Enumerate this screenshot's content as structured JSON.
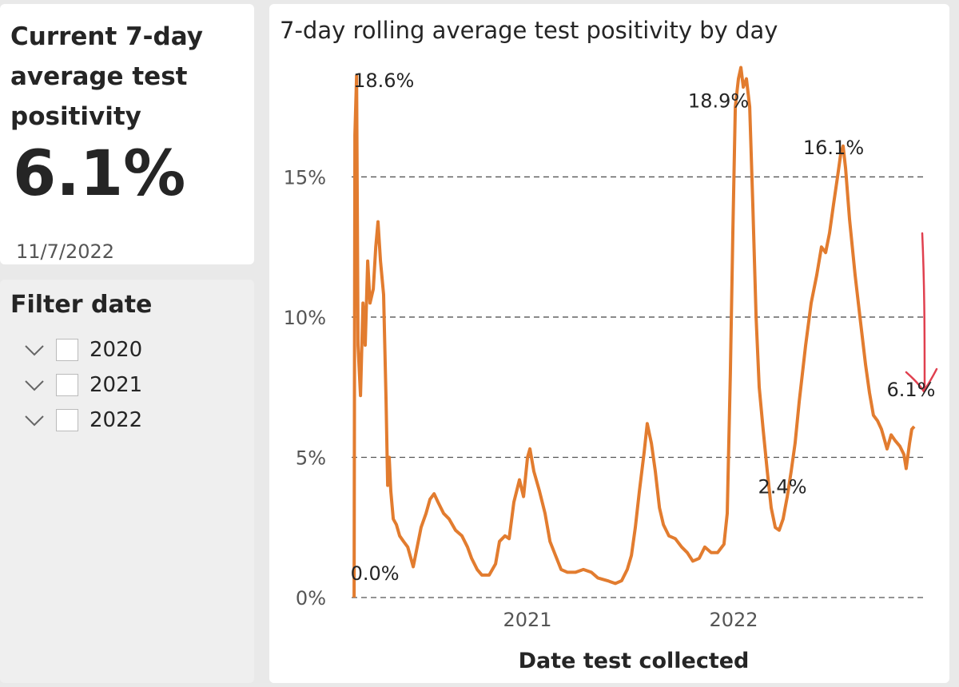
{
  "card": {
    "title": "Current 7-day average test positivity",
    "value": "6.1%",
    "date": "11/7/2022"
  },
  "filter": {
    "title": "Filter date",
    "items": [
      "2020",
      "2021",
      "2022"
    ]
  },
  "chart_data": {
    "type": "line",
    "title": "7-day rolling average test positivity by day",
    "x_label": "Date test collected",
    "color": "#e27c2f",
    "grid": true,
    "xlim": [
      2020.147,
      2022.938
    ],
    "xticks": [
      2021,
      2022
    ],
    "ylim": [
      0,
      19
    ],
    "yticks": [
      {
        "value": 0,
        "label": "0%"
      },
      {
        "value": 5,
        "label": "5%"
      },
      {
        "value": 10,
        "label": "10%"
      },
      {
        "value": 15,
        "label": "15%"
      }
    ],
    "x": [
      2020.159,
      2020.163,
      2020.171,
      2020.178,
      2020.19,
      2020.202,
      2020.213,
      2020.225,
      2020.236,
      2020.252,
      2020.264,
      2020.275,
      2020.287,
      2020.302,
      2020.314,
      2020.322,
      2020.329,
      2020.337,
      2020.349,
      2020.364,
      2020.38,
      2020.399,
      2020.419,
      2020.446,
      2020.465,
      2020.484,
      2020.508,
      2020.527,
      2020.547,
      2020.566,
      2020.593,
      2020.62,
      2020.651,
      2020.682,
      2020.709,
      2020.729,
      2020.756,
      2020.779,
      2020.814,
      2020.845,
      2020.864,
      2020.891,
      2020.911,
      2020.934,
      2020.961,
      2020.981,
      2021.0,
      2021.012,
      2021.031,
      2021.058,
      2021.085,
      2021.109,
      2021.136,
      2021.163,
      2021.194,
      2021.233,
      2021.271,
      2021.31,
      2021.341,
      2021.388,
      2021.426,
      2021.457,
      2021.484,
      2021.504,
      2021.523,
      2021.543,
      2021.566,
      2021.581,
      2021.601,
      2021.62,
      2021.64,
      2021.659,
      2021.686,
      2021.717,
      2021.748,
      2021.775,
      2021.802,
      2021.833,
      2021.86,
      2021.891,
      2021.922,
      2021.953,
      2021.969,
      2021.984,
      2021.996,
      2022.008,
      2022.023,
      2022.035,
      2022.047,
      2022.062,
      2022.078,
      2022.093,
      2022.109,
      2022.124,
      2022.143,
      2022.163,
      2022.182,
      2022.202,
      2022.221,
      2022.24,
      2022.26,
      2022.279,
      2022.298,
      2022.318,
      2022.349,
      2022.376,
      2022.403,
      2022.426,
      2022.446,
      2022.465,
      2022.484,
      2022.504,
      2022.519,
      2022.531,
      2022.543,
      2022.562,
      2022.589,
      2022.616,
      2022.64,
      2022.659,
      2022.678,
      2022.698,
      2022.717,
      2022.744,
      2022.764,
      2022.783,
      2022.806,
      2022.826,
      2022.837,
      2022.853,
      2022.864,
      2022.876
    ],
    "values": [
      0,
      16.5,
      18.6,
      9,
      7.2,
      10.5,
      9,
      12,
      10.5,
      11,
      12.5,
      13.4,
      12,
      10.8,
      7,
      4,
      5,
      3.8,
      2.8,
      2.6,
      2.2,
      2,
      1.8,
      1.1,
      1.8,
      2.5,
      3,
      3.5,
      3.7,
      3.4,
      3,
      2.8,
      2.4,
      2.2,
      1.8,
      1.4,
      1,
      0.8,
      0.8,
      1.2,
      2,
      2.2,
      2.1,
      3.4,
      4.2,
      3.6,
      5,
      5.3,
      4.5,
      3.8,
      3,
      2,
      1.5,
      1,
      0.9,
      0.9,
      1,
      0.9,
      0.7,
      0.6,
      0.5,
      0.6,
      1,
      1.5,
      2.5,
      3.8,
      5.2,
      6.2,
      5.5,
      4.5,
      3.2,
      2.6,
      2.2,
      2.1,
      1.8,
      1.6,
      1.3,
      1.4,
      1.8,
      1.6,
      1.6,
      1.9,
      3,
      8,
      13,
      17.5,
      18.5,
      18.9,
      18.2,
      18.5,
      17.5,
      14,
      10,
      7.5,
      6,
      4.5,
      3.2,
      2.5,
      2.4,
      2.8,
      3.6,
      4.5,
      5.5,
      7,
      9,
      10.5,
      11.5,
      12.5,
      12.3,
      13,
      14,
      15,
      15.8,
      16.1,
      15.3,
      13.5,
      11.5,
      9.8,
      8.3,
      7.3,
      6.5,
      6.3,
      6,
      5.3,
      5.8,
      5.6,
      5.4,
      5.1,
      4.6,
      5.5,
      6,
      6.1
    ],
    "annotations": [
      {
        "x": 2020.171,
        "y": 18.6,
        "label": "18.6%"
      },
      {
        "x": 2020.159,
        "y": 0,
        "label": "0.0%"
      },
      {
        "x": 2022.035,
        "y": 18.9,
        "label": "18.9%"
      },
      {
        "x": 2022.221,
        "y": 2.4,
        "label": "2.4%"
      },
      {
        "x": 2022.531,
        "y": 16.1,
        "label": "16.1%"
      },
      {
        "x": 2022.876,
        "y": 6.1,
        "label": "6.1%"
      }
    ]
  }
}
